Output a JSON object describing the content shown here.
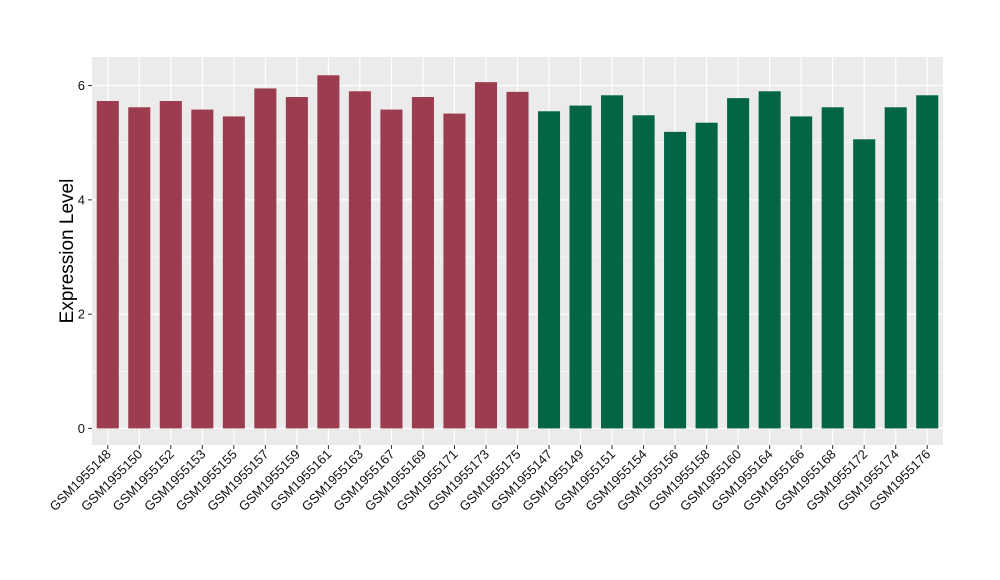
{
  "chart_data": {
    "type": "bar",
    "title": "",
    "xlabel": "",
    "ylabel": "Expression Level",
    "ylim": [
      0,
      6.5
    ],
    "yticks": [
      0,
      2,
      4,
      6
    ],
    "yticks_text": [
      "0",
      "2",
      "4",
      "6"
    ],
    "grid": true,
    "legend": "none",
    "colors": {
      "group1": "#9b3d4e",
      "group2": "#036446",
      "panel": "#ebebeb",
      "grid": "#ffffff"
    },
    "categories": [
      "GSM1955148",
      "GSM1955150",
      "GSM1955152",
      "GSM1955153",
      "GSM1955155",
      "GSM1955157",
      "GSM1955159",
      "GSM1955161",
      "GSM1955163",
      "GSM1955167",
      "GSM1955169",
      "GSM1955171",
      "GSM1955173",
      "GSM1955175",
      "GSM1955147",
      "GSM1955149",
      "GSM1955151",
      "GSM1955154",
      "GSM1955156",
      "GSM1955158",
      "GSM1955160",
      "GSM1955164",
      "GSM1955166",
      "GSM1955168",
      "GSM1955172",
      "GSM1955174",
      "GSM1955176"
    ],
    "values": [
      5.73,
      5.62,
      5.73,
      5.58,
      5.46,
      5.95,
      5.8,
      6.18,
      5.9,
      5.58,
      5.8,
      5.51,
      6.06,
      5.89,
      5.55,
      5.65,
      5.83,
      5.48,
      5.19,
      5.35,
      5.78,
      5.9,
      5.46,
      5.62,
      5.06,
      5.62,
      5.83
    ],
    "groups": [
      1,
      1,
      1,
      1,
      1,
      1,
      1,
      1,
      1,
      1,
      1,
      1,
      1,
      1,
      2,
      2,
      2,
      2,
      2,
      2,
      2,
      2,
      2,
      2,
      2,
      2,
      2
    ]
  }
}
